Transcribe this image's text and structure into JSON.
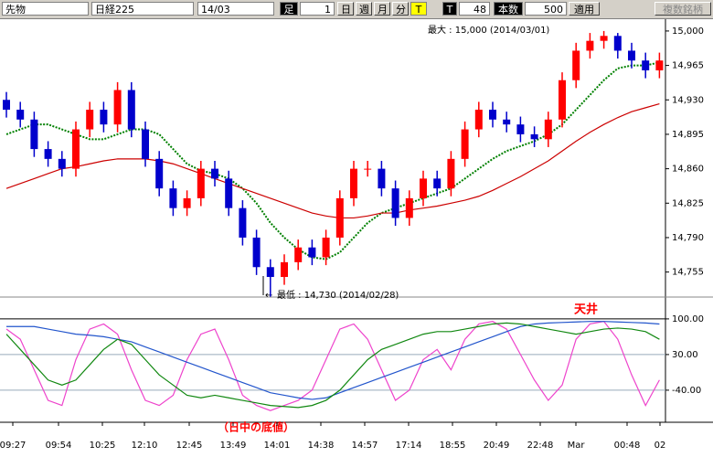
{
  "toolbar": {
    "product": "先物",
    "index": "日経225",
    "month": "14/03",
    "bar_label": "足",
    "bar_value": "1",
    "day": "日",
    "week": "週",
    "monthly": "月",
    "minute": "分",
    "t1": "T",
    "t2": "T",
    "count": "48",
    "count_label": "本数",
    "bars": "500",
    "apply": "適用",
    "multi": "複数銘柄"
  },
  "chart_data": {
    "type": "candlestick",
    "x_labels": [
      "09:27",
      "09:54",
      "10:25",
      "12:10",
      "12:45",
      "13:49",
      "14:01",
      "14:38",
      "14:57",
      "17:14",
      "18:55",
      "20:49",
      "22:48",
      "Mar",
      "00:48",
      "02"
    ],
    "open": [
      14930,
      14920,
      14910,
      14880,
      14870,
      14860,
      14900,
      14920,
      14905,
      14940,
      14900,
      14870,
      14840,
      14820,
      14830,
      14860,
      14850,
      14820,
      14790,
      14760,
      14750,
      14765,
      14780,
      14770,
      14790,
      14830,
      14860,
      14860,
      14840,
      14810,
      14830,
      14850,
      14840,
      14870,
      14900,
      14920,
      14910,
      14905,
      14895,
      14890,
      14910,
      14950,
      14980,
      14990,
      14995,
      14980,
      14970,
      14960
    ],
    "high": [
      14938,
      14928,
      14918,
      14888,
      14878,
      14908,
      14928,
      14928,
      14948,
      14948,
      14908,
      14878,
      14848,
      14838,
      14868,
      14868,
      14858,
      14828,
      14798,
      14768,
      14773,
      14788,
      14788,
      14798,
      14838,
      14868,
      14868,
      14868,
      14848,
      14838,
      14858,
      14858,
      14878,
      14908,
      14928,
      14928,
      14918,
      14913,
      14903,
      14918,
      14958,
      14988,
      14998,
      15000,
      14998,
      14988,
      14978,
      14978
    ],
    "low": [
      14912,
      14902,
      14872,
      14862,
      14852,
      14852,
      14892,
      14897,
      14897,
      14892,
      14862,
      14832,
      14812,
      14812,
      14822,
      14842,
      14812,
      14782,
      14752,
      14730,
      14742,
      14757,
      14762,
      14762,
      14782,
      14822,
      14852,
      14832,
      14802,
      14802,
      14822,
      14832,
      14832,
      14862,
      14892,
      14902,
      14897,
      14887,
      14882,
      14882,
      14902,
      14942,
      14972,
      14982,
      14972,
      14962,
      14952,
      14952
    ],
    "close": [
      14920,
      14910,
      14880,
      14870,
      14860,
      14900,
      14920,
      14905,
      14940,
      14900,
      14870,
      14840,
      14820,
      14830,
      14860,
      14850,
      14820,
      14790,
      14760,
      14750,
      14765,
      14780,
      14770,
      14790,
      14830,
      14860,
      14860,
      14840,
      14810,
      14830,
      14850,
      14840,
      14870,
      14900,
      14920,
      14910,
      14905,
      14895,
      14890,
      14910,
      14950,
      14980,
      14990,
      14995,
      14980,
      14970,
      14960,
      14970
    ],
    "up_color": "#ff0000",
    "down_color": "#0000cc",
    "ma": [
      {
        "color": "#008000",
        "values": [
          14895,
          14900,
          14905,
          14905,
          14900,
          14895,
          14890,
          14890,
          14895,
          14900,
          14900,
          14895,
          14880,
          14865,
          14858,
          14855,
          14850,
          14840,
          14825,
          14805,
          14790,
          14778,
          14770,
          14768,
          14775,
          14790,
          14805,
          14815,
          14820,
          14825,
          14830,
          14835,
          14840,
          14850,
          14860,
          14870,
          14878,
          14883,
          14888,
          14895,
          14905,
          14920,
          14935,
          14950,
          14962,
          14965,
          14965,
          14968
        ]
      },
      {
        "color": "#cc0000",
        "values": [
          14840,
          14845,
          14850,
          14855,
          14860,
          14862,
          14865,
          14868,
          14870,
          14870,
          14870,
          14868,
          14865,
          14860,
          14855,
          14850,
          14845,
          14840,
          14835,
          14830,
          14825,
          14820,
          14815,
          14812,
          14810,
          14810,
          14812,
          14815,
          14815,
          14818,
          14820,
          14822,
          14825,
          14828,
          14832,
          14838,
          14845,
          14852,
          14860,
          14868,
          14878,
          14888,
          14897,
          14905,
          14912,
          14918,
          14922,
          14926
        ]
      }
    ],
    "ylim": [
      14711,
      15012
    ],
    "yticks": [
      {
        "value": 14755,
        "label": "14,755"
      },
      {
        "value": 14790,
        "label": "14,790"
      },
      {
        "value": 14825,
        "label": "14,825"
      },
      {
        "value": 14860,
        "label": "14,860"
      },
      {
        "value": 14895,
        "label": "14,895"
      },
      {
        "value": 14930,
        "label": "14,930"
      },
      {
        "value": 14965,
        "label": "14,965"
      },
      {
        "value": 15000,
        "label": "15,000"
      }
    ],
    "max_note": "最大 : 15,000 (2014/03/01)",
    "min_note": "最低 : 14,730 (2014/02/28)",
    "oscillator": {
      "ylim": [
        -103,
        107
      ],
      "yticks": [
        {
          "value": 100,
          "label": "100.00"
        },
        {
          "value": 30,
          "label": "30.00"
        },
        {
          "value": -40,
          "label": "-40.00"
        }
      ],
      "series": [
        {
          "color": "#ee44cc",
          "values": [
            80,
            60,
            0,
            -60,
            -70,
            20,
            80,
            90,
            70,
            0,
            -60,
            -70,
            -50,
            20,
            70,
            80,
            20,
            -50,
            -70,
            -80,
            -70,
            -60,
            -40,
            20,
            80,
            90,
            60,
            0,
            -60,
            -40,
            20,
            40,
            0,
            60,
            90,
            95,
            80,
            30,
            -20,
            -60,
            -30,
            60,
            90,
            95,
            60,
            -10,
            -70,
            -20
          ]
        },
        {
          "color": "#2255cc",
          "values": [
            85,
            85,
            85,
            80,
            75,
            70,
            68,
            65,
            60,
            55,
            45,
            35,
            25,
            15,
            5,
            -5,
            -15,
            -25,
            -35,
            -45,
            -50,
            -55,
            -58,
            -55,
            -45,
            -35,
            -25,
            -15,
            -5,
            5,
            15,
            25,
            35,
            45,
            55,
            65,
            75,
            85,
            90,
            92,
            93,
            94,
            95,
            95,
            94,
            93,
            92,
            90
          ]
        },
        {
          "color": "#118811",
          "values": [
            70,
            40,
            10,
            -20,
            -30,
            -20,
            10,
            40,
            60,
            50,
            20,
            -10,
            -30,
            -50,
            -55,
            -50,
            -55,
            -60,
            -65,
            -70,
            -72,
            -74,
            -70,
            -60,
            -40,
            -10,
            20,
            40,
            50,
            60,
            70,
            75,
            75,
            80,
            85,
            90,
            92,
            90,
            85,
            80,
            75,
            70,
            75,
            80,
            82,
            80,
            75,
            60
          ]
        }
      ],
      "top_note": "天井",
      "bottom_note": "（日中の底値）"
    }
  }
}
